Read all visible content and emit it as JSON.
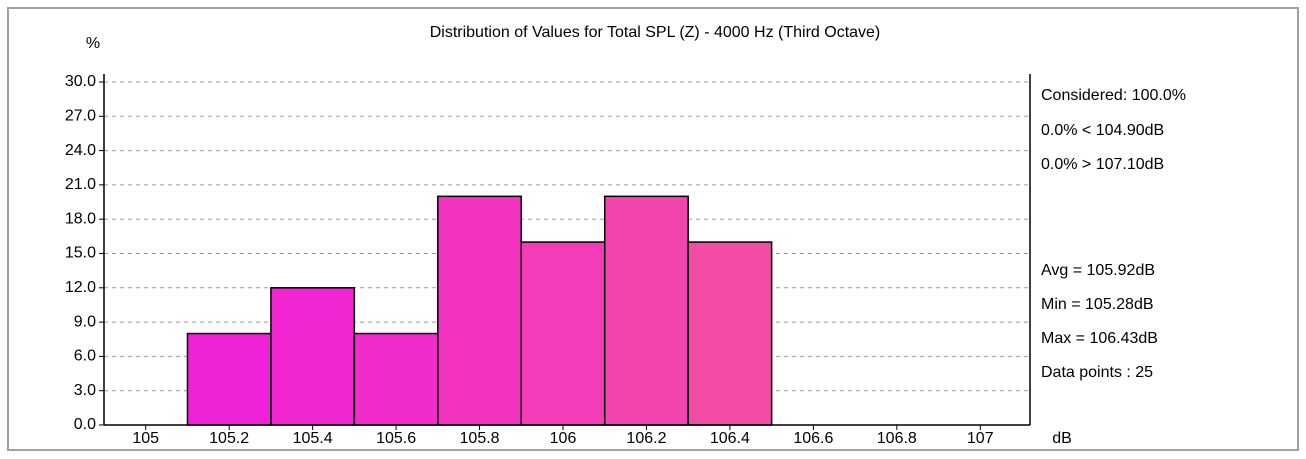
{
  "chart_data": {
    "type": "histogram",
    "title": "Distribution of Values for Total SPL (Z)  - 4000 Hz (Third Octave)",
    "y_label": "%",
    "x_label": "dB",
    "bins": [
      104.9,
      105.1,
      105.3,
      105.5,
      105.7,
      105.9,
      106.1,
      106.3,
      106.5,
      106.7,
      106.9,
      107.1
    ],
    "counts": [
      0,
      8,
      12,
      8,
      20,
      16,
      20,
      16,
      0,
      0,
      0
    ],
    "colors": [
      "#f01ee0",
      "#f022d8",
      "#f226d2",
      "#f22ccb",
      "#f234c0",
      "#f23cb8",
      "#f244ae",
      "#f24ca4",
      "#f252a0",
      "#f2589a",
      "#f25e94"
    ],
    "edge_color": "#000000",
    "xlim": [
      104.9,
      107.1
    ],
    "xticks": [
      105,
      105.2,
      105.4,
      105.6,
      105.8,
      106,
      106.2,
      106.4,
      106.6,
      106.8,
      107
    ],
    "ylim": [
      0,
      30
    ],
    "yticks": [
      {
        "value": 0,
        "label": "0.0"
      },
      {
        "value": 3,
        "label": "3.0"
      },
      {
        "value": 6,
        "label": "6.0"
      },
      {
        "value": 9,
        "label": "9.0"
      },
      {
        "value": 12,
        "label": "12.0"
      },
      {
        "value": 15,
        "label": "15.0"
      },
      {
        "value": 18,
        "label": "18.0"
      },
      {
        "value": 21,
        "label": "21.0"
      },
      {
        "value": 24,
        "label": "24.0"
      },
      {
        "value": 27,
        "label": "27.0"
      },
      {
        "value": 30,
        "label": "30.0"
      }
    ],
    "grid": true,
    "annotations": [
      "Considered: 100.0%",
      "0.0%  < 104.90dB",
      "0.0%  > 107.10dB",
      "Avg = 105.92dB",
      "Min = 105.28dB",
      "Max = 106.43dB",
      "Data points : 25"
    ]
  }
}
